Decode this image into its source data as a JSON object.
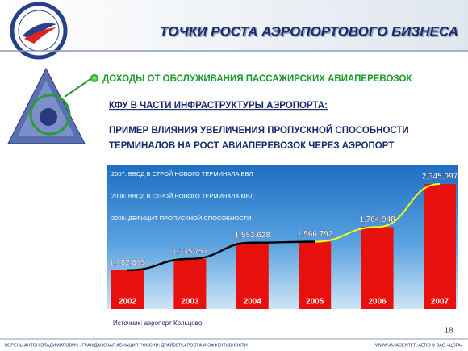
{
  "header": {
    "title": "ТОЧКИ РОСТА АЭРОПОРТОВОГО БИЗНЕСА"
  },
  "bullet": "ДОХОДЫ ОТ ОБСЛУЖИВАНИЯ ПАССАЖИРСКИХ АВИАПЕРЕВОЗОК",
  "subheading": "КФУ В ЧАСТИ ИНФРАСТРУКТУРЫ АЭРОПОРТА:",
  "description": [
    "ПРИМЕР ВЛИЯНИЯ УВЕЛИЧЕНИЯ ПРОПУСКНОЙ СПОСОБНОСТИ",
    "ТЕРМИНАЛОВ НА РОСТ АВИАПЕРЕВОЗОК ЧЕРЕЗ АЭРОПОРТ"
  ],
  "chart_data": {
    "type": "bar",
    "categories": [
      "2002",
      "2003",
      "2004",
      "2005",
      "2006",
      "2007"
    ],
    "values": [
      1182815,
      1335757,
      1553628,
      1566792,
      1764948,
      2345097
    ],
    "value_labels": [
      "1,182,815",
      "1,335,757",
      "1,553,628",
      "1,566,792",
      "1,764,948",
      "2,345,097"
    ],
    "color": "#e8100c",
    "annotations": [
      "2007: ВВОД В СТРОЙ НОВОГО ТЕРМИНАЛА ВВЛ",
      "2006: ВВОД В СТРОЙ НОВОГО ТЕРМИНАЛА МВЛ",
      "2005: ДЕФИЦИТ ПРОПУСКНОЙ СПОСОБНОСТИ"
    ]
  },
  "source": "Источник: аэропорт Кольцово",
  "page_number": "18",
  "footer": {
    "left": "КОРЕНЬ АНТОН ВЛАДИМИРОВИЧ - ГРАЖДАНСКАЯ АВИАЦИЯ РОССИИ: ДРАЙВЕРЫ РОСТА И ЭФФЕКТИВНОСТИ",
    "right": "WWW.AVIACENTER.AERO © ЗАО «ЦСГА»"
  }
}
